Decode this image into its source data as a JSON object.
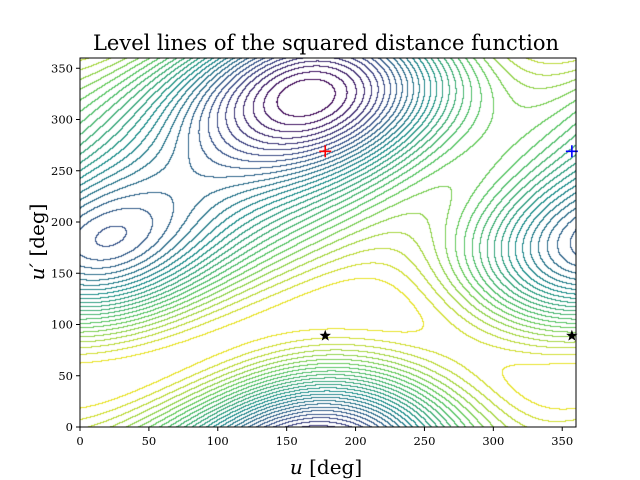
{
  "chart_data": {
    "type": "contour",
    "title": "Level lines of the squared distance function",
    "xlabel": {
      "symbol": "u",
      "unit": "[deg]"
    },
    "ylabel": {
      "symbol": "u′",
      "unit": "[deg]"
    },
    "xlim": [
      0,
      360
    ],
    "ylim": [
      0,
      360
    ],
    "xticks": [
      0,
      50,
      100,
      150,
      200,
      250,
      300,
      350
    ],
    "yticks": [
      0,
      50,
      100,
      150,
      200,
      250,
      300,
      350
    ],
    "grid": false,
    "colormap": [
      "#440154",
      "#3b528b",
      "#21908d",
      "#5dc963",
      "#fde725"
    ],
    "levels": 30,
    "markers": [
      {
        "x": 178,
        "y": 269,
        "symbol": "plus",
        "color": "#ff0000"
      },
      {
        "x": 357,
        "y": 269,
        "symbol": "plus",
        "color": "#0000ff"
      },
      {
        "x": 178,
        "y": 89,
        "symbol": "star",
        "color": "#000000"
      },
      {
        "x": 357,
        "y": 89,
        "symbol": "star",
        "color": "#000000"
      }
    ]
  }
}
